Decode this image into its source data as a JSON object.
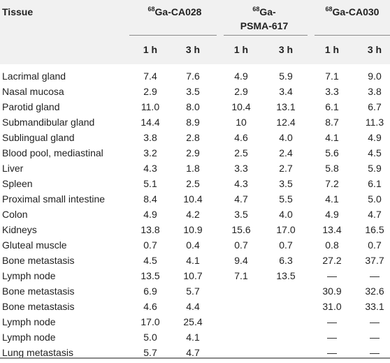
{
  "header": {
    "tissue_label": "Tissue",
    "groups": [
      {
        "sup": "68",
        "name": "Ga-CA028"
      },
      {
        "sup": "68",
        "name_line1": "Ga-",
        "name_line2": "PSMA-617"
      },
      {
        "sup": "68",
        "name": "Ga-CA030"
      }
    ],
    "timepoints": [
      "1 h",
      "3 h",
      "1 h",
      "3 h",
      "1 h",
      "3 h"
    ]
  },
  "rows": [
    {
      "tissue": "Lacrimal gland",
      "values": [
        "7.4",
        "7.6",
        "4.9",
        "5.9",
        "7.1",
        "9.0"
      ]
    },
    {
      "tissue": "Nasal mucosa",
      "values": [
        "2.9",
        "3.5",
        "2.9",
        "3.4",
        "3.3",
        "3.8"
      ]
    },
    {
      "tissue": "Parotid gland",
      "values": [
        "11.0",
        "8.0",
        "10.4",
        "13.1",
        "6.1",
        "6.7"
      ]
    },
    {
      "tissue": "Submandibular gland",
      "values": [
        "14.4",
        "8.9",
        "10",
        "12.4",
        "8.7",
        "11.3"
      ]
    },
    {
      "tissue": "Sublingual gland",
      "values": [
        "3.8",
        "2.8",
        "4.6",
        "4.0",
        "4.1",
        "4.9"
      ]
    },
    {
      "tissue": "Blood pool, mediastinal",
      "values": [
        "3.2",
        "2.9",
        "2.5",
        "2.4",
        "5.6",
        "4.5"
      ]
    },
    {
      "tissue": "Liver",
      "values": [
        "4.3",
        "1.8",
        "3.3",
        "2.7",
        "5.8",
        "5.9"
      ]
    },
    {
      "tissue": "Spleen",
      "values": [
        "5.1",
        "2.5",
        "4.3",
        "3.5",
        "7.2",
        "6.1"
      ]
    },
    {
      "tissue": "Proximal small intestine",
      "values": [
        "8.4",
        "10.4",
        "4.7",
        "5.5",
        "4.1",
        "5.0"
      ]
    },
    {
      "tissue": "Colon",
      "values": [
        "4.9",
        "4.2",
        "3.5",
        "4.0",
        "4.9",
        "4.7"
      ]
    },
    {
      "tissue": "Kidneys",
      "values": [
        "13.8",
        "10.9",
        "15.6",
        "17.0",
        "13.4",
        "16.5"
      ]
    },
    {
      "tissue": "Gluteal muscle",
      "values": [
        "0.7",
        "0.4",
        "0.7",
        "0.7",
        "0.8",
        "0.7"
      ]
    },
    {
      "tissue": "Bone metastasis",
      "values": [
        "4.5",
        "4.1",
        "9.4",
        "6.3",
        "27.2",
        "37.7"
      ]
    },
    {
      "tissue": "Lymph node",
      "values": [
        "13.5",
        "10.7",
        "7.1",
        "13.5",
        "—",
        "—"
      ]
    },
    {
      "tissue": "Bone metastasis",
      "values": [
        "6.9",
        "5.7",
        "",
        "",
        "30.9",
        "32.6"
      ]
    },
    {
      "tissue": "Bone metastasis",
      "values": [
        "4.6",
        "4.4",
        "",
        "",
        "31.0",
        "33.1"
      ]
    },
    {
      "tissue": "Lymph node",
      "values": [
        "17.0",
        "25.4",
        "",
        "",
        "—",
        "—"
      ]
    },
    {
      "tissue": "Lymph node",
      "values": [
        "5.0",
        "4.1",
        "",
        "",
        "—",
        "—"
      ]
    },
    {
      "tissue": "Lung metastasis",
      "values": [
        "5.7",
        "4.7",
        "",
        "",
        "—",
        "—"
      ]
    }
  ]
}
